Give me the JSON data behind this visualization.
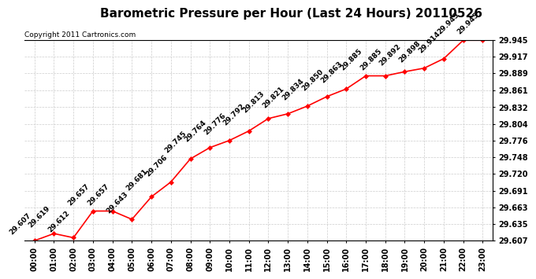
{
  "title": "Barometric Pressure per Hour (Last 24 Hours) 20110526",
  "copyright": "Copyright 2011 Cartronics.com",
  "hours": [
    "00:00",
    "01:00",
    "02:00",
    "03:00",
    "04:00",
    "05:00",
    "06:00",
    "07:00",
    "08:00",
    "09:00",
    "10:00",
    "11:00",
    "12:00",
    "13:00",
    "14:00",
    "15:00",
    "16:00",
    "17:00",
    "18:00",
    "19:00",
    "20:00",
    "21:00",
    "22:00",
    "23:00"
  ],
  "pressures": [
    29.607,
    29.619,
    29.612,
    29.657,
    29.657,
    29.643,
    29.681,
    29.706,
    29.745,
    29.764,
    29.776,
    29.792,
    29.813,
    29.821,
    29.834,
    29.85,
    29.863,
    29.885,
    29.885,
    29.892,
    29.898,
    29.914,
    29.945,
    29.945
  ],
  "ylim_min": 29.607,
  "ylim_max": 29.945,
  "yticks": [
    29.607,
    29.635,
    29.663,
    29.691,
    29.72,
    29.748,
    29.776,
    29.804,
    29.832,
    29.861,
    29.889,
    29.917,
    29.945
  ],
  "line_color": "red",
  "marker": "D",
  "marker_size": 3,
  "marker_color": "red",
  "marker_face": "red",
  "grid_color": "#cccccc",
  "bg_color": "white",
  "title_fontsize": 11,
  "label_fontsize": 7,
  "annot_fontsize": 6.5,
  "copyright_fontsize": 6.5
}
